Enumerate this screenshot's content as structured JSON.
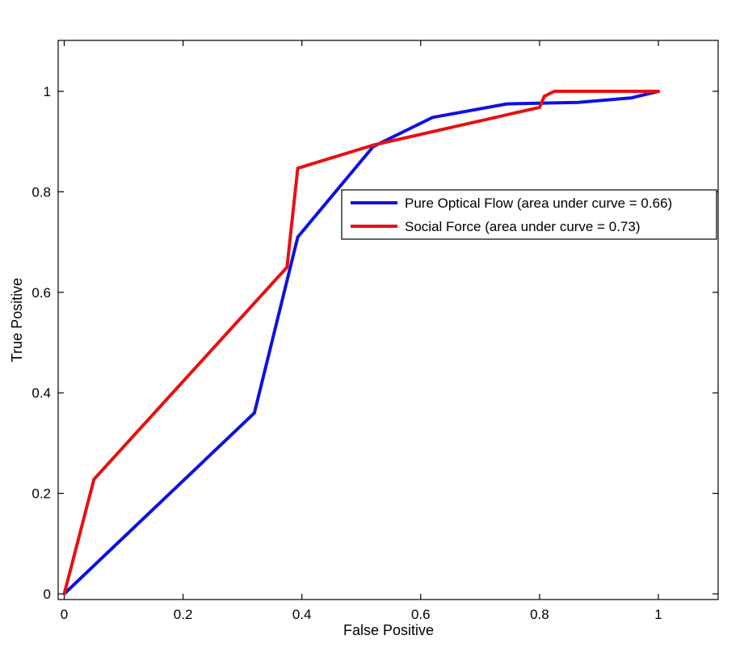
{
  "chart_data": {
    "type": "line",
    "title": "",
    "xlabel": "False Positive",
    "ylabel": "True Positive",
    "xlim": [
      0,
      1.1
    ],
    "ylim": [
      0,
      1.1
    ],
    "xticks": [
      0,
      0.2,
      0.4,
      0.6,
      0.8,
      1
    ],
    "xtick_labels": [
      "0",
      "0.2",
      "0.4",
      "0.6",
      "0.8",
      "1"
    ],
    "yticks": [
      0,
      0.2,
      0.4,
      0.6,
      0.8,
      1
    ],
    "ytick_labels": [
      "0",
      "0.2",
      "0.4",
      "0.6",
      "0.8",
      "1"
    ],
    "grid": false,
    "legend_position": "right",
    "series": [
      {
        "name": "Pure Optical Flow (area under curve = 0.66)",
        "color": "#1010e0",
        "x": [
          0,
          0.32,
          0.393,
          0.52,
          0.62,
          0.745,
          0.865,
          0.955,
          1.0
        ],
        "y": [
          0,
          0.36,
          0.71,
          0.89,
          0.948,
          0.975,
          0.978,
          0.987,
          1.0
        ]
      },
      {
        "name": "Social Force (area under curve = 0.73)",
        "color": "#e81010",
        "x": [
          0,
          0.05,
          0.375,
          0.393,
          0.52,
          0.8,
          0.808,
          0.825,
          1.0
        ],
        "y": [
          0,
          0.228,
          0.65,
          0.847,
          0.893,
          0.968,
          0.99,
          1.0,
          1.0
        ]
      }
    ]
  }
}
